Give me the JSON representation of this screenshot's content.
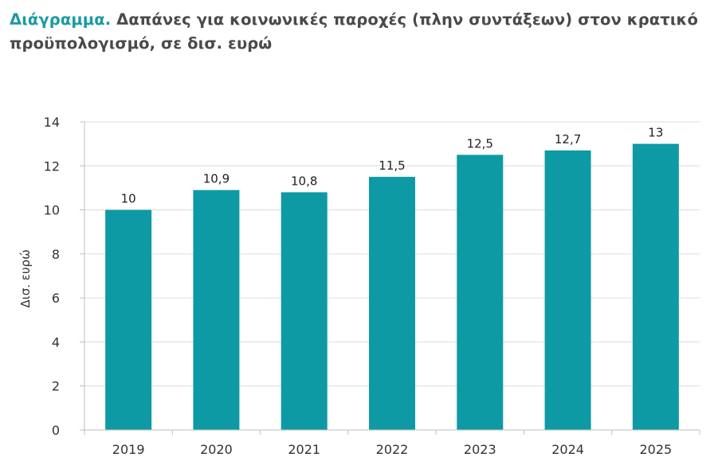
{
  "title": {
    "lead": "Διάγραμμα.",
    "text": "Δαπάνες για κοινωνικές παροχές (πλην συντάξεων) στον κρατικό προϋπολογισμό, σε δισ. ευρώ"
  },
  "chart_data": {
    "type": "bar",
    "title": "Διάγραμμα. Δαπάνες για κοινωνικές παροχές (πλην συντάξεων) στον κρατικό προϋπολογισμό, σε δισ. ευρώ",
    "xlabel": "",
    "ylabel": "Δισ. ευρώ",
    "categories": [
      "2019",
      "2020",
      "2021",
      "2022",
      "2023",
      "2024",
      "2025"
    ],
    "values": [
      10,
      10.9,
      10.8,
      11.5,
      12.5,
      12.7,
      13
    ],
    "data_labels": [
      "10",
      "10,9",
      "10,8",
      "11,5",
      "12,5",
      "12,7",
      "13"
    ],
    "ylim": [
      0,
      14
    ],
    "yticks": [
      0,
      2,
      4,
      6,
      8,
      10,
      12,
      14
    ],
    "grid": true,
    "legend": "none",
    "bar_color": "#0e9aa5"
  }
}
